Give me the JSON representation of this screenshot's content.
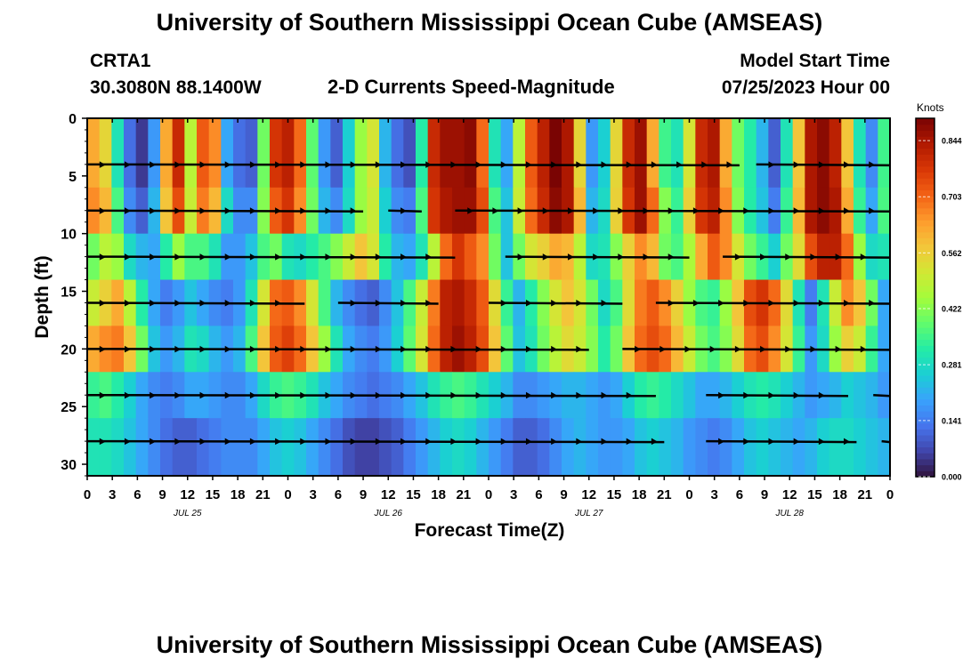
{
  "page_title": "University of Southern Mississippi Ocean Cube (AMSEAS)",
  "footer_title": "University of Southern Mississippi Ocean Cube (AMSEAS)",
  "station": {
    "name": "CRTA1",
    "position": "30.3080N  88.1400W"
  },
  "model": {
    "label": "Model Start Time",
    "start": "07/25/2023 Hour 00"
  },
  "chart_data": {
    "type": "heatmap",
    "title": "2-D Currents Speed-Magnitude",
    "xlabel": "Forecast Time(Z)",
    "ylabel": "Depth (ft)",
    "x_hours_range": [
      0,
      96
    ],
    "ylim": [
      0,
      31
    ],
    "y_inverted": true,
    "x_tick_labels": [
      "0",
      "3",
      "6",
      "9",
      "12",
      "15",
      "18",
      "21",
      "0",
      "3",
      "6",
      "9",
      "12",
      "15",
      "18",
      "21",
      "0",
      "3",
      "6",
      "9",
      "12",
      "15",
      "18",
      "21",
      "0",
      "3",
      "6",
      "9",
      "12",
      "15",
      "18",
      "21",
      "0"
    ],
    "date_labels": [
      "JUL 25",
      "JUL 26",
      "JUL 27",
      "JUL 28"
    ],
    "y_ticks": [
      0,
      5,
      10,
      15,
      20,
      25,
      30
    ],
    "colorbar": {
      "unit": "Knots",
      "min": 0.0,
      "max": 0.9,
      "tick_values": [
        0.0,
        0.141,
        0.281,
        0.422,
        0.562,
        0.703,
        0.844
      ],
      "tick_labels": [
        "0.000",
        "0.141",
        "0.281",
        "0.422",
        "0.562",
        "0.703",
        "0.844"
      ],
      "colors": [
        "#30123b",
        "#4145ab",
        "#4675ed",
        "#39a2fc",
        "#1bcfd4",
        "#24eca6",
        "#61fc6c",
        "#a4fc3b",
        "#d1e834",
        "#f3c63a",
        "#fe9b2d",
        "#f36315",
        "#d93806",
        "#b11901",
        "#7a0403"
      ]
    },
    "depth_levels_ft": [
      4,
      8,
      12,
      16,
      20,
      24,
      28
    ],
    "speed_knots": [
      [
        0.62,
        0.55,
        0.3,
        0.12,
        0.05,
        0.18,
        0.62,
        0.8,
        0.48,
        0.72,
        0.66,
        0.2,
        0.12,
        0.1,
        0.4,
        0.78,
        0.82,
        0.7,
        0.38,
        0.18,
        0.1,
        0.26,
        0.44,
        0.52,
        0.22,
        0.12,
        0.08,
        0.32,
        0.8,
        0.86,
        0.86,
        0.88,
        0.7,
        0.3,
        0.2,
        0.48,
        0.72,
        0.82,
        0.9,
        0.84,
        0.55,
        0.18,
        0.26,
        0.55,
        0.8,
        0.86,
        0.62,
        0.35,
        0.3,
        0.52,
        0.8,
        0.84,
        0.62,
        0.4,
        0.32,
        0.22,
        0.1,
        0.3,
        0.58,
        0.84,
        0.88,
        0.82,
        0.58,
        0.3,
        0.16,
        0.35
      ],
      [
        0.66,
        0.6,
        0.36,
        0.16,
        0.1,
        0.22,
        0.58,
        0.74,
        0.5,
        0.68,
        0.6,
        0.28,
        0.16,
        0.16,
        0.42,
        0.72,
        0.78,
        0.66,
        0.4,
        0.22,
        0.16,
        0.28,
        0.44,
        0.5,
        0.26,
        0.16,
        0.14,
        0.36,
        0.78,
        0.84,
        0.86,
        0.86,
        0.74,
        0.36,
        0.24,
        0.5,
        0.7,
        0.8,
        0.88,
        0.84,
        0.6,
        0.22,
        0.28,
        0.56,
        0.78,
        0.86,
        0.7,
        0.42,
        0.34,
        0.56,
        0.78,
        0.82,
        0.66,
        0.42,
        0.32,
        0.24,
        0.14,
        0.34,
        0.6,
        0.84,
        0.88,
        0.84,
        0.62,
        0.34,
        0.2,
        0.36
      ],
      [
        0.4,
        0.48,
        0.44,
        0.28,
        0.22,
        0.2,
        0.32,
        0.44,
        0.36,
        0.36,
        0.3,
        0.18,
        0.18,
        0.24,
        0.36,
        0.4,
        0.3,
        0.28,
        0.32,
        0.36,
        0.42,
        0.5,
        0.58,
        0.52,
        0.32,
        0.22,
        0.2,
        0.3,
        0.48,
        0.7,
        0.78,
        0.72,
        0.66,
        0.4,
        0.24,
        0.4,
        0.52,
        0.56,
        0.62,
        0.6,
        0.48,
        0.28,
        0.3,
        0.42,
        0.56,
        0.66,
        0.6,
        0.4,
        0.36,
        0.46,
        0.62,
        0.72,
        0.66,
        0.52,
        0.4,
        0.34,
        0.26,
        0.4,
        0.54,
        0.74,
        0.82,
        0.82,
        0.7,
        0.44,
        0.28,
        0.3
      ],
      [
        0.5,
        0.56,
        0.62,
        0.48,
        0.32,
        0.2,
        0.14,
        0.18,
        0.24,
        0.2,
        0.16,
        0.14,
        0.18,
        0.3,
        0.52,
        0.7,
        0.72,
        0.66,
        0.52,
        0.36,
        0.22,
        0.16,
        0.12,
        0.1,
        0.16,
        0.24,
        0.36,
        0.5,
        0.68,
        0.82,
        0.84,
        0.8,
        0.72,
        0.54,
        0.34,
        0.22,
        0.32,
        0.42,
        0.52,
        0.58,
        0.52,
        0.4,
        0.28,
        0.36,
        0.54,
        0.68,
        0.72,
        0.66,
        0.56,
        0.44,
        0.36,
        0.34,
        0.44,
        0.58,
        0.74,
        0.78,
        0.7,
        0.54,
        0.3,
        0.14,
        0.3,
        0.5,
        0.66,
        0.58,
        0.4,
        0.2
      ],
      [
        0.62,
        0.66,
        0.68,
        0.58,
        0.4,
        0.24,
        0.18,
        0.22,
        0.3,
        0.28,
        0.22,
        0.18,
        0.22,
        0.36,
        0.58,
        0.72,
        0.76,
        0.7,
        0.58,
        0.44,
        0.3,
        0.2,
        0.16,
        0.14,
        0.18,
        0.26,
        0.38,
        0.52,
        0.7,
        0.82,
        0.86,
        0.82,
        0.74,
        0.58,
        0.38,
        0.24,
        0.3,
        0.4,
        0.48,
        0.54,
        0.5,
        0.42,
        0.32,
        0.4,
        0.58,
        0.7,
        0.74,
        0.7,
        0.6,
        0.5,
        0.4,
        0.36,
        0.42,
        0.54,
        0.7,
        0.74,
        0.66,
        0.52,
        0.34,
        0.18,
        0.28,
        0.44,
        0.56,
        0.5,
        0.34,
        0.2
      ],
      [
        0.34,
        0.36,
        0.32,
        0.26,
        0.2,
        0.16,
        0.14,
        0.16,
        0.2,
        0.2,
        0.18,
        0.16,
        0.16,
        0.2,
        0.28,
        0.34,
        0.36,
        0.34,
        0.3,
        0.24,
        0.2,
        0.16,
        0.14,
        0.12,
        0.14,
        0.16,
        0.2,
        0.24,
        0.3,
        0.34,
        0.36,
        0.34,
        0.3,
        0.26,
        0.22,
        0.16,
        0.16,
        0.18,
        0.2,
        0.22,
        0.22,
        0.2,
        0.18,
        0.2,
        0.26,
        0.32,
        0.34,
        0.32,
        0.28,
        0.24,
        0.2,
        0.2,
        0.22,
        0.26,
        0.3,
        0.32,
        0.3,
        0.26,
        0.22,
        0.18,
        0.2,
        0.22,
        0.26,
        0.24,
        0.22,
        0.18
      ],
      [
        0.3,
        0.3,
        0.28,
        0.24,
        0.2,
        0.16,
        0.12,
        0.1,
        0.1,
        0.12,
        0.14,
        0.16,
        0.16,
        0.16,
        0.2,
        0.24,
        0.26,
        0.24,
        0.2,
        0.16,
        0.12,
        0.08,
        0.06,
        0.06,
        0.08,
        0.1,
        0.14,
        0.18,
        0.22,
        0.26,
        0.28,
        0.26,
        0.22,
        0.18,
        0.14,
        0.1,
        0.1,
        0.12,
        0.16,
        0.2,
        0.22,
        0.2,
        0.18,
        0.18,
        0.2,
        0.24,
        0.26,
        0.24,
        0.22,
        0.18,
        0.16,
        0.14,
        0.16,
        0.2,
        0.24,
        0.26,
        0.24,
        0.22,
        0.2,
        0.22,
        0.26,
        0.28,
        0.28,
        0.26,
        0.24,
        0.22
      ]
    ]
  }
}
